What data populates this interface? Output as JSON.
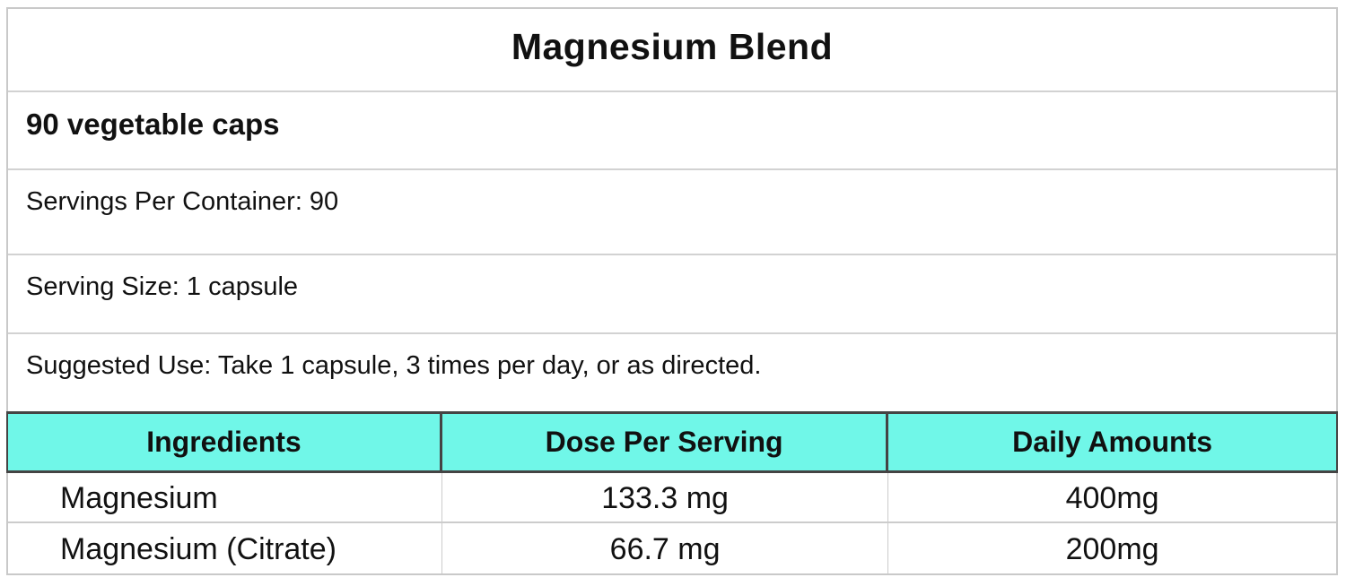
{
  "label": {
    "title": "Magnesium Blend",
    "quantity": "90 vegetable caps",
    "servings_per_container": "Servings Per Container: 90",
    "serving_size": "Serving Size: 1 capsule",
    "suggested_use": "Suggested Use: Take 1 capsule, 3 times per day, or as directed."
  },
  "table": {
    "headers": [
      "Ingredients",
      "Dose Per Serving",
      "Daily Amounts"
    ],
    "rows": [
      {
        "ingredient": "Magnesium",
        "dose": "133.3 mg",
        "daily": "400mg"
      },
      {
        "ingredient": "Magnesium (Citrate)",
        "dose": "66.7 mg",
        "daily": "200mg"
      }
    ]
  },
  "colors": {
    "header_bg": "#70f7e8",
    "header_border": "#444444",
    "row_divider": "#cccccc",
    "outer_border": "#c9c9c9"
  }
}
